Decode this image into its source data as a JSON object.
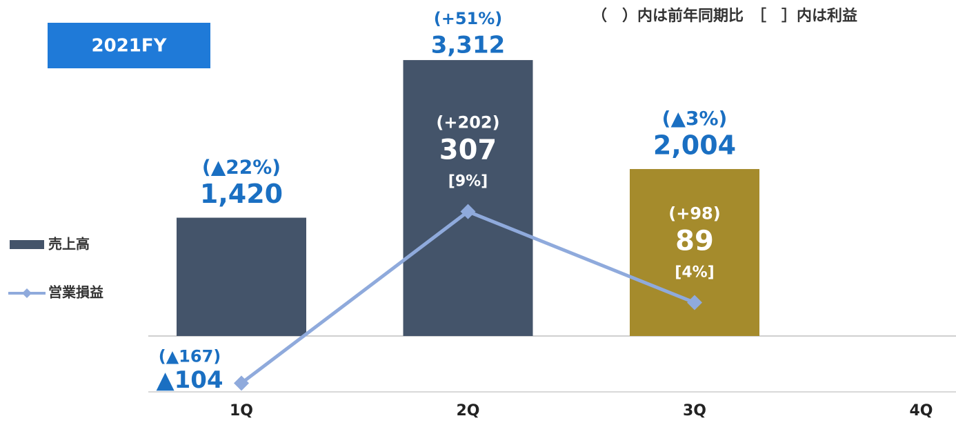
{
  "chart_data": {
    "type": "bar_line",
    "badge": "2021FY",
    "note": "（　）内は前年同期比　［　］内は利益",
    "categories": [
      "1Q",
      "2Q",
      "3Q",
      "4Q"
    ],
    "ylim": [
      0,
      4000
    ],
    "y2lim": [
      -120,
      670
    ],
    "series": [
      {
        "name": "売上高",
        "type": "bar",
        "colors": [
          "#44546a",
          "#44546a",
          "#a58b2c",
          "#44546a"
        ],
        "values": [
          1420,
          3312,
          2004,
          null
        ],
        "value_labels": [
          "1,420",
          "3,312",
          "2,004",
          null
        ],
        "change_labels": [
          "(▲22%)",
          "(+51%)",
          "(▲3%)",
          null
        ]
      },
      {
        "name": "営業損益",
        "type": "line",
        "axis": "y2",
        "color": "#8faadc",
        "values": [
          -104,
          307,
          89,
          null
        ],
        "value_labels": [
          "▲104",
          "307",
          "89",
          null
        ],
        "change_labels": [
          "(▲167)",
          "(+202)",
          "(+98)",
          null
        ],
        "margin_labels": [
          null,
          "[9%]",
          "[4%]",
          null
        ]
      }
    ]
  }
}
